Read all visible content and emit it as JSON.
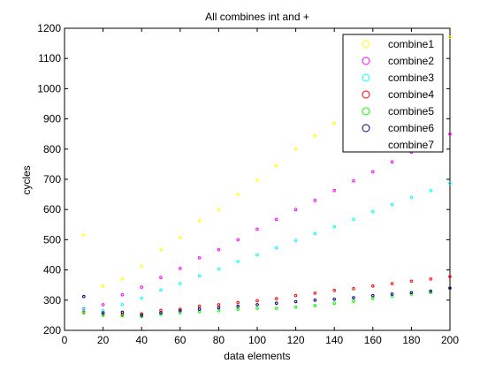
{
  "chart_data": {
    "type": "scatter",
    "title": "All combines int and +",
    "xlabel": "data elements",
    "ylabel": "cycles",
    "xlim": [
      0,
      200
    ],
    "ylim": [
      200,
      1200
    ],
    "xticks": [
      0,
      20,
      40,
      60,
      80,
      100,
      120,
      140,
      160,
      180,
      200
    ],
    "yticks": [
      200,
      300,
      400,
      500,
      600,
      700,
      800,
      900,
      1000,
      1100,
      1200
    ],
    "grid": false,
    "legend_position": "top-right",
    "x": [
      10,
      20,
      30,
      40,
      50,
      60,
      70,
      80,
      90,
      100,
      110,
      120,
      130,
      140,
      150,
      160,
      170,
      180,
      190,
      200
    ],
    "series": [
      {
        "name": "combine1",
        "color": "#ffff00",
        "values": [
          515,
          347,
          370,
          413,
          467,
          507,
          563,
          600,
          650,
          697,
          745,
          800,
          845,
          885,
          930,
          975,
          1020,
          1065,
          1115,
          1170
        ]
      },
      {
        "name": "combine2",
        "color": "#ff00ff",
        "values": [
          272,
          285,
          318,
          343,
          375,
          405,
          440,
          467,
          500,
          535,
          567,
          600,
          630,
          663,
          695,
          725,
          758,
          790,
          820,
          850
        ]
      },
      {
        "name": "combine3",
        "color": "#00ffff",
        "values": [
          270,
          265,
          285,
          307,
          333,
          355,
          380,
          403,
          428,
          450,
          473,
          497,
          520,
          543,
          567,
          593,
          617,
          640,
          663,
          687
        ]
      },
      {
        "name": "combine4",
        "color": "#ff0000",
        "values": [
          260,
          252,
          252,
          255,
          266,
          270,
          280,
          285,
          292,
          298,
          305,
          315,
          323,
          332,
          338,
          347,
          355,
          363,
          370,
          378
        ]
      },
      {
        "name": "combine5",
        "color": "#00ff00",
        "values": [
          258,
          250,
          248,
          245,
          253,
          258,
          262,
          265,
          270,
          273,
          273,
          277,
          282,
          290,
          296,
          306,
          313,
          320,
          325,
          340
        ]
      },
      {
        "name": "combine6",
        "color": "#000080",
        "values": [
          312,
          258,
          260,
          250,
          258,
          265,
          270,
          275,
          280,
          285,
          290,
          295,
          300,
          303,
          308,
          315,
          320,
          325,
          330,
          340
        ]
      },
      {
        "name": "combine7",
        "color": "#ffffff",
        "values": []
      }
    ]
  }
}
